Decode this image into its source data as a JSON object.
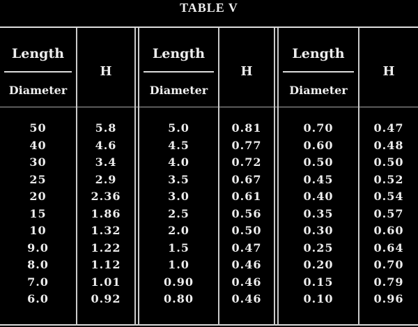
{
  "title": "TABLE V",
  "headers": {
    "length": "Length",
    "diameter": "Diameter",
    "h": "H"
  },
  "groups": [
    {
      "ld": [
        "50",
        "40",
        "30",
        "25",
        "20",
        "15",
        "10",
        "9.0",
        "8.0",
        "7.0",
        "6.0"
      ],
      "h": [
        "5.8",
        "4.6",
        "3.4",
        "2.9",
        "2.36",
        "1.86",
        "1.32",
        "1.22",
        "1.12",
        "1.01",
        "0.92"
      ]
    },
    {
      "ld": [
        "5.0",
        "4.5",
        "4.0",
        "3.5",
        "3.0",
        "2.5",
        "2.0",
        "1.5",
        "1.0",
        "0.90",
        "0.80"
      ],
      "h": [
        "0.81",
        "0.77",
        "0.72",
        "0.67",
        "0.61",
        "0.56",
        "0.50",
        "0.47",
        "0.46",
        "0.46",
        "0.46"
      ]
    },
    {
      "ld": [
        "0.70",
        "0.60",
        "0.50",
        "0.45",
        "0.40",
        "0.35",
        "0.30",
        "0.25",
        "0.20",
        "0.15",
        "0.10"
      ],
      "h": [
        "0.47",
        "0.48",
        "0.50",
        "0.52",
        "0.54",
        "0.57",
        "0.60",
        "0.64",
        "0.70",
        "0.79",
        "0.96"
      ]
    }
  ]
}
